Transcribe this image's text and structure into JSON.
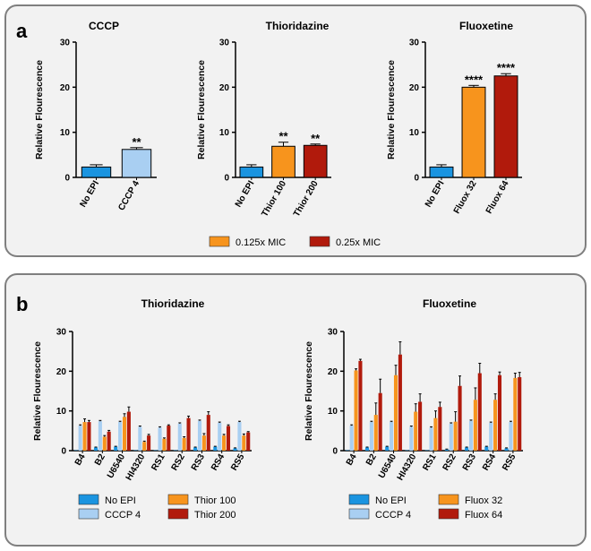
{
  "panels": {
    "a": "a",
    "b": "b"
  },
  "colors": {
    "No EPI": "#1a94e0",
    "CCCP 4": "#a9cff2",
    "orange": "#f7941d",
    "red": "#b11a0c"
  },
  "chart_data": [
    {
      "type": "bar",
      "title": "CCCP",
      "ylabel": "Relative Flourescence",
      "ylim": [
        0,
        30
      ],
      "yticks": [
        0,
        10,
        20,
        30
      ],
      "categories": [
        "No EPI",
        "CCCP 4"
      ],
      "values": [
        2.3,
        6.2
      ],
      "errors": [
        0.5,
        0.4
      ],
      "colors": [
        "#1a94e0",
        "#a9cff2"
      ],
      "annotations": [
        "",
        "**"
      ]
    },
    {
      "type": "bar",
      "title": "Thioridazine",
      "ylabel": "Relative Flourescence",
      "ylim": [
        0,
        30
      ],
      "yticks": [
        0,
        10,
        20,
        30
      ],
      "categories": [
        "No EPI",
        "Thior 100",
        "Thior 200"
      ],
      "values": [
        2.3,
        6.9,
        7.1
      ],
      "errors": [
        0.5,
        0.9,
        0.3
      ],
      "colors": [
        "#1a94e0",
        "#f7941d",
        "#b11a0c"
      ],
      "annotations": [
        "",
        "**",
        "**"
      ]
    },
    {
      "type": "bar",
      "title": "Fluoxetine",
      "ylabel": "Relative Flourescence",
      "ylim": [
        0,
        30
      ],
      "yticks": [
        0,
        10,
        20,
        30
      ],
      "categories": [
        "No EPI",
        "Fluox 32",
        "Fluox 64"
      ],
      "values": [
        2.3,
        20.0,
        22.5
      ],
      "errors": [
        0.5,
        0.4,
        0.5
      ],
      "colors": [
        "#1a94e0",
        "#f7941d",
        "#b11a0c"
      ],
      "annotations": [
        "",
        "****",
        "****"
      ]
    },
    {
      "type": "bar",
      "title": "Thioridazine",
      "ylabel": "Relative Flourescence",
      "ylim": [
        0,
        30
      ],
      "yticks": [
        0,
        10,
        20,
        30
      ],
      "categories": [
        "B4",
        "B2",
        "U6540",
        "HI4320",
        "RS1",
        "RS2",
        "RS3",
        "RS4",
        "RS5"
      ],
      "series": [
        {
          "name": "No EPI",
          "color": "#1a94e0",
          "values": [
            0.1,
            0.8,
            1.0,
            0.1,
            0.1,
            0.1,
            0.8,
            1.0,
            0.6
          ],
          "errors": [
            0,
            0.1,
            0.1,
            0,
            0,
            0,
            0.1,
            0.1,
            0.1
          ]
        },
        {
          "name": "CCCP 4",
          "color": "#a9cff2",
          "values": [
            6.3,
            7.4,
            7.2,
            6.0,
            5.8,
            6.8,
            7.5,
            7.0,
            7.2
          ],
          "errors": [
            0.2,
            0.2,
            0.2,
            0.2,
            0.2,
            0.2,
            0.2,
            0.2,
            0.2
          ]
        },
        {
          "name": "Thior 100",
          "color": "#f7941d",
          "values": [
            7.2,
            3.5,
            8.5,
            2.2,
            3.0,
            3.2,
            3.8,
            3.8,
            3.8
          ],
          "errors": [
            0.8,
            0.3,
            0.8,
            0.2,
            0.2,
            0.3,
            0.5,
            0.3,
            0.4
          ]
        },
        {
          "name": "Thior 200",
          "color": "#b11a0c",
          "values": [
            7.2,
            4.8,
            9.8,
            3.8,
            6.3,
            8.2,
            9.0,
            6.2,
            4.6
          ],
          "errors": [
            0.4,
            0.3,
            1.2,
            0.3,
            0.2,
            0.5,
            0.8,
            0.3,
            0.2
          ]
        }
      ]
    },
    {
      "type": "bar",
      "title": "Fluoxetine",
      "ylabel": "Relative Flourescence",
      "ylim": [
        0,
        30
      ],
      "yticks": [
        0,
        10,
        20,
        30
      ],
      "categories": [
        "B4",
        "B2",
        "U6540",
        "HI4320",
        "RS1",
        "RS2",
        "RS3",
        "RS4",
        "RS5"
      ],
      "series": [
        {
          "name": "No EPI",
          "color": "#1a94e0",
          "values": [
            0.1,
            0.8,
            1.0,
            0.1,
            0.1,
            0.3,
            0.8,
            1.0,
            0.6
          ],
          "errors": [
            0,
            0.1,
            0.1,
            0,
            0,
            0.1,
            0.1,
            0.1,
            0.1
          ]
        },
        {
          "name": "CCCP 4",
          "color": "#a9cff2",
          "values": [
            6.3,
            7.2,
            7.2,
            6.0,
            5.8,
            6.8,
            7.5,
            7.0,
            7.2
          ],
          "errors": [
            0.2,
            0.2,
            0.2,
            0.2,
            0.2,
            0.2,
            0.2,
            0.2,
            0.2
          ]
        },
        {
          "name": "Fluox 32",
          "color": "#f7941d",
          "values": [
            20.2,
            9.0,
            19.0,
            9.8,
            8.2,
            7.3,
            12.8,
            12.8,
            18.3
          ],
          "errors": [
            0.4,
            3.0,
            2.5,
            2.0,
            1.8,
            2.5,
            3.0,
            1.5,
            1.2
          ]
        },
        {
          "name": "Fluox 64",
          "color": "#b11a0c",
          "values": [
            22.6,
            14.5,
            24.2,
            12.3,
            11.0,
            16.3,
            19.5,
            19.0,
            18.5
          ],
          "errors": [
            0.4,
            3.5,
            3.2,
            2.0,
            1.2,
            2.5,
            2.5,
            0.8,
            1.2
          ]
        }
      ]
    }
  ],
  "legend_a": [
    {
      "label": "0.125x MIC",
      "color": "#f7941d"
    },
    {
      "label": "0.25x MIC",
      "color": "#b11a0c"
    }
  ],
  "legend_b_left": [
    {
      "label": "No EPI",
      "color": "#1a94e0"
    },
    {
      "label": "CCCP 4",
      "color": "#a9cff2"
    },
    {
      "label": "Thior 100",
      "color": "#f7941d"
    },
    {
      "label": "Thior 200",
      "color": "#b11a0c"
    }
  ],
  "legend_b_right": [
    {
      "label": "No EPI",
      "color": "#1a94e0"
    },
    {
      "label": "CCCP 4",
      "color": "#a9cff2"
    },
    {
      "label": "Fluox 32",
      "color": "#f7941d"
    },
    {
      "label": "Fluox 64",
      "color": "#b11a0c"
    }
  ]
}
